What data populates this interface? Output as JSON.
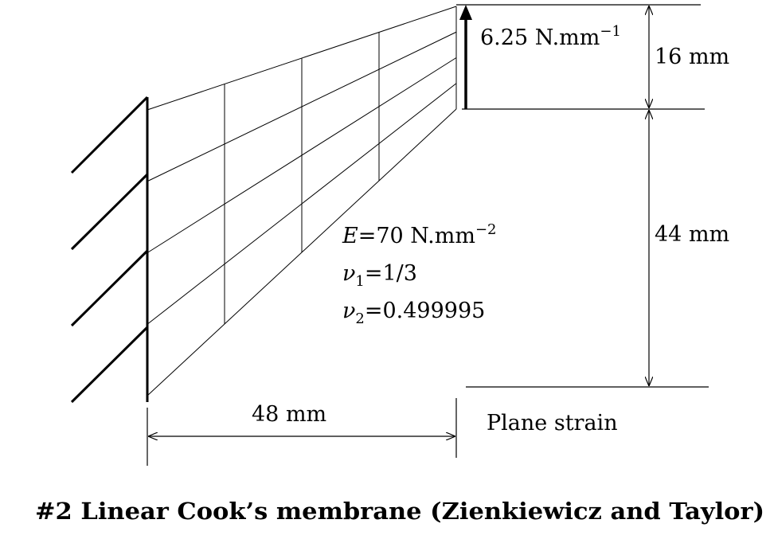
{
  "load": {
    "value": "6.25 N.mm",
    "exponent": "−1"
  },
  "dimensions": {
    "top_height": "16 mm",
    "free_edge_height": "44 mm",
    "width": "48 mm"
  },
  "material": {
    "E_symbol": "E",
    "E_value": "=70 N.mm",
    "E_exponent": "−2",
    "nu": "ν",
    "nu1_sub": "1",
    "nu1_value": "=1/3",
    "nu2_sub": "2",
    "nu2_value": "=0.499995"
  },
  "condition": "Plane strain",
  "caption": "#2 Linear Cook’s membrane (Zienkiewicz and Taylor)",
  "mesh": {
    "divisions_x": 4,
    "divisions_y": 4
  }
}
